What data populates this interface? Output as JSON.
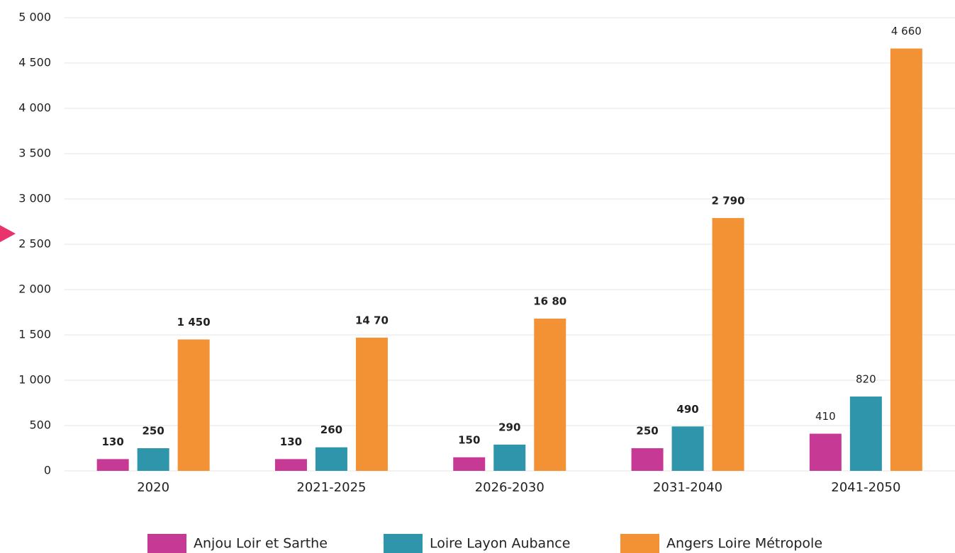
{
  "chart_data": {
    "type": "bar",
    "categories": [
      "2020",
      "2021-2025",
      "2026-2030",
      "2031-2040",
      "2041-2050"
    ],
    "series": [
      {
        "name": "Anjou Loir et Sarthe",
        "color": "#c63a96",
        "values": [
          130,
          130,
          150,
          250,
          410
        ]
      },
      {
        "name": "Loire Layon Aubance",
        "color": "#2e95aa",
        "values": [
          250,
          260,
          290,
          490,
          820
        ]
      },
      {
        "name": "Angers Loire Métropole",
        "color": "#f39234",
        "values": [
          1450,
          1470,
          1680,
          2790,
          4660
        ],
        "value_labels": [
          "1 450",
          "14 70",
          "16 80",
          "2 790",
          "4 660"
        ]
      }
    ],
    "ylim": [
      0,
      5000
    ],
    "yticks": [
      0,
      500,
      {
        "value": 1000,
        "label": "1 000"
      },
      {
        "value": 1500,
        "label": "1 500"
      },
      {
        "value": 2000,
        "label": "2 000"
      },
      {
        "value": 2500,
        "label": "2 500"
      },
      {
        "value": 3000,
        "label": "3 000"
      },
      {
        "value": 3500,
        "label": "3 500"
      },
      {
        "value": 4000,
        "label": "4 000"
      },
      {
        "value": 4500,
        "label": "4 500"
      },
      {
        "value": 5000,
        "label": "5 000"
      }
    ],
    "grid": true,
    "legend": "bottom"
  }
}
